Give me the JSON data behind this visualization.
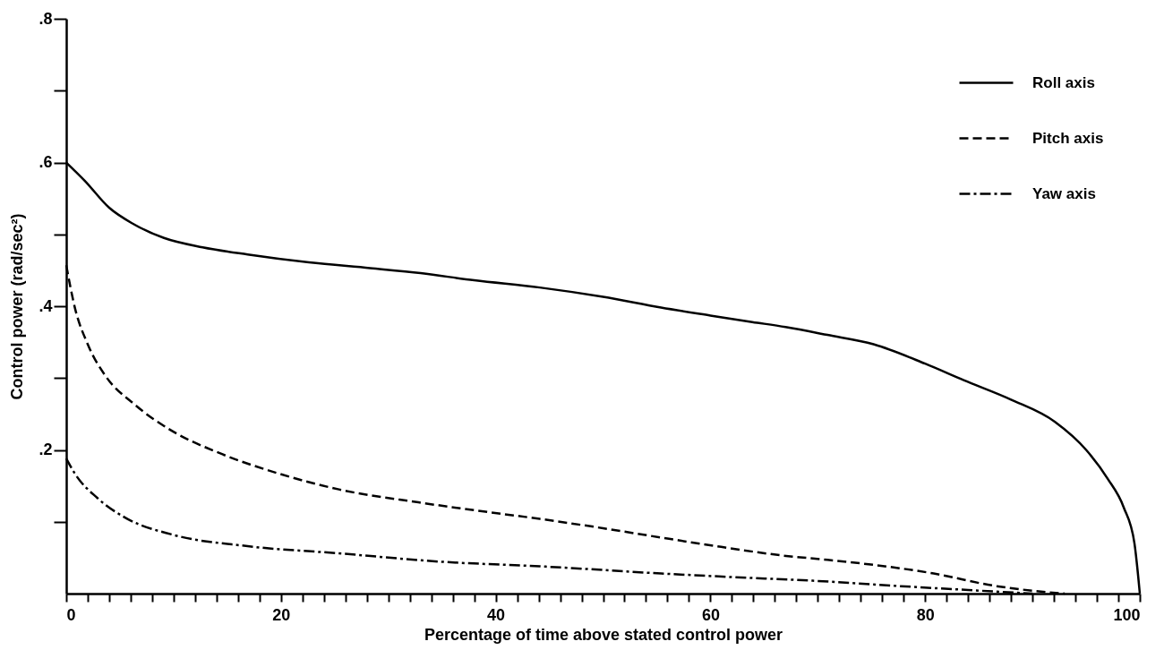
{
  "chart_data": {
    "type": "line",
    "xlabel": "Percentage of time above stated control power",
    "ylabel": "Control power (rad/sec²)",
    "xlim": [
      0,
      100
    ],
    "ylim": [
      0,
      0.8
    ],
    "xticks": [
      0,
      {
        "value": 2,
        "label": null
      },
      {
        "value": 4,
        "label": null
      },
      {
        "value": 6,
        "label": null
      },
      {
        "value": 8,
        "label": null
      },
      {
        "value": 10,
        "label": null
      },
      {
        "value": 12,
        "label": null
      },
      {
        "value": 14,
        "label": null
      },
      {
        "value": 16,
        "label": null
      },
      {
        "value": 18,
        "label": null
      },
      20,
      {
        "value": 22,
        "label": null
      },
      {
        "value": 24,
        "label": null
      },
      {
        "value": 26,
        "label": null
      },
      {
        "value": 28,
        "label": null
      },
      {
        "value": 30,
        "label": null
      },
      {
        "value": 32,
        "label": null
      },
      {
        "value": 34,
        "label": null
      },
      {
        "value": 36,
        "label": null
      },
      {
        "value": 38,
        "label": null
      },
      40,
      {
        "value": 42,
        "label": null
      },
      {
        "value": 44,
        "label": null
      },
      {
        "value": 46,
        "label": null
      },
      {
        "value": 48,
        "label": null
      },
      {
        "value": 50,
        "label": null
      },
      {
        "value": 52,
        "label": null
      },
      {
        "value": 54,
        "label": null
      },
      {
        "value": 56,
        "label": null
      },
      {
        "value": 58,
        "label": null
      },
      60,
      {
        "value": 62,
        "label": null
      },
      {
        "value": 64,
        "label": null
      },
      {
        "value": 66,
        "label": null
      },
      {
        "value": 68,
        "label": null
      },
      {
        "value": 70,
        "label": null
      },
      {
        "value": 72,
        "label": null
      },
      {
        "value": 74,
        "label": null
      },
      {
        "value": 76,
        "label": null
      },
      {
        "value": 78,
        "label": null
      },
      80,
      {
        "value": 82,
        "label": null
      },
      {
        "value": 84,
        "label": null
      },
      {
        "value": 86,
        "label": null
      },
      {
        "value": 88,
        "label": null
      },
      {
        "value": 90,
        "label": null
      },
      {
        "value": 92,
        "label": null
      },
      {
        "value": 94,
        "label": null
      },
      {
        "value": 96,
        "label": null
      },
      {
        "value": 98,
        "label": null
      },
      100
    ],
    "yticks": [
      {
        "value": 0.1,
        "label": null
      },
      {
        "value": 0.2,
        "label": ".2"
      },
      {
        "value": 0.3,
        "label": null
      },
      {
        "value": 0.4,
        "label": ".4"
      },
      {
        "value": 0.5,
        "label": null
      },
      {
        "value": 0.6,
        "label": ".6"
      },
      {
        "value": 0.7,
        "label": null
      },
      {
        "value": 0.8,
        "label": ".8"
      }
    ],
    "grid": false,
    "legend": "top right",
    "marker": "none",
    "series": [
      {
        "name": "Roll axis",
        "color": "#000000",
        "line_style": "solid",
        "x": [
          0,
          1.7,
          4.0,
          6.3,
          9.1,
          12.7,
          16.9,
          22.6,
          28.3,
          33,
          38,
          44.1,
          50,
          55.4,
          60,
          63.9,
          67,
          70.9,
          75.2,
          80,
          83.6,
          88,
          92.1,
          95,
          97,
          98.5,
          99.5,
          100
        ],
        "values": [
          0.6,
          0.575,
          0.537,
          0.514,
          0.495,
          0.482,
          0.472,
          0.461,
          0.453,
          0.446,
          0.436,
          0.426,
          0.413,
          0.398,
          0.387,
          0.378,
          0.371,
          0.36,
          0.347,
          0.32,
          0.297,
          0.27,
          0.239,
          0.2,
          0.16,
          0.12,
          0.07,
          0
        ]
      },
      {
        "name": "Pitch axis",
        "color": "#000000",
        "line_style": "dashed",
        "x": [
          0,
          0.8,
          2.0,
          3.7,
          6.3,
          9.9,
          14.2,
          19.8,
          25.4,
          32.8,
          38,
          44.1,
          50,
          55.4,
          61,
          66.7,
          70.9,
          75.2,
          80.8,
          86.4,
          90,
          93
        ],
        "values": [
          0.457,
          0.398,
          0.347,
          0.302,
          0.264,
          0.226,
          0.196,
          0.167,
          0.145,
          0.127,
          0.116,
          0.104,
          0.091,
          0.078,
          0.065,
          0.053,
          0.047,
          0.04,
          0.028,
          0.011,
          0.004,
          0
        ]
      },
      {
        "name": "Yaw axis",
        "color": "#000000",
        "line_style": "dashdot",
        "x": [
          0,
          0.8,
          2.9,
          5.7,
          9.9,
          16.9,
          25.4,
          35.3,
          44.1,
          55.4,
          62,
          69.5,
          77,
          84,
          90
        ],
        "values": [
          0.188,
          0.167,
          0.133,
          0.104,
          0.082,
          0.066,
          0.056,
          0.044,
          0.038,
          0.028,
          0.023,
          0.018,
          0.011,
          0.005,
          0
        ]
      }
    ]
  }
}
